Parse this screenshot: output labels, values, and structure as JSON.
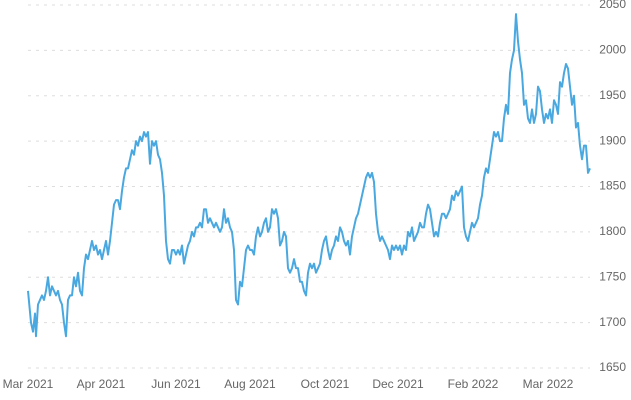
{
  "chart_data": {
    "type": "line",
    "x": [
      0,
      3,
      5,
      7,
      8,
      10,
      12,
      14,
      16,
      18,
      20,
      22,
      24,
      26,
      28,
      30,
      32,
      34,
      36,
      38,
      40,
      42,
      44,
      46,
      48,
      50,
      52,
      54,
      56,
      58,
      60,
      62,
      64,
      66,
      68,
      70,
      72,
      74,
      76,
      78,
      80,
      82,
      84,
      86,
      88,
      90,
      92,
      94,
      96,
      98,
      100,
      102,
      104,
      106,
      108,
      110,
      112,
      114,
      116,
      118,
      120,
      122,
      124,
      126,
      128,
      130,
      132,
      134,
      136,
      138,
      140,
      142,
      144,
      146,
      148,
      150,
      152,
      154,
      156,
      158,
      160,
      162,
      164,
      166,
      168,
      170,
      172,
      174,
      176,
      178,
      180,
      182,
      184,
      186,
      188,
      190,
      192,
      194,
      196,
      198,
      200,
      202,
      204,
      206,
      208,
      210,
      212,
      214,
      216,
      218,
      220,
      222,
      224,
      226,
      228,
      230,
      232,
      234,
      236,
      238,
      240,
      242,
      244,
      246,
      248,
      250,
      252,
      254,
      256,
      258,
      260,
      262,
      264,
      266,
      268,
      270,
      272,
      274,
      276,
      278,
      280,
      282,
      284,
      286,
      288,
      290,
      292,
      294,
      296,
      298,
      300,
      302,
      304,
      306,
      308,
      310,
      312,
      314,
      316,
      318,
      320,
      322,
      324,
      326,
      328,
      330,
      332,
      334,
      336,
      338,
      340,
      342,
      344,
      346,
      348,
      350,
      352,
      354,
      356,
      358,
      360,
      362,
      364,
      366,
      368,
      370,
      372,
      374,
      376,
      378,
      380,
      382,
      384,
      386,
      388,
      390,
      392,
      394,
      396,
      398,
      400,
      402,
      404,
      406,
      408,
      410,
      412,
      414,
      416,
      418,
      420,
      422,
      424,
      426,
      428,
      430,
      432,
      434,
      436,
      438,
      440,
      442,
      444,
      446,
      448,
      450,
      452,
      454,
      456,
      458,
      460,
      462,
      464,
      466,
      468,
      470,
      472,
      474,
      476,
      478,
      480,
      482,
      484,
      486,
      488,
      490,
      492,
      494,
      496,
      498,
      500,
      502,
      504,
      506,
      508,
      510,
      512,
      514,
      516,
      518,
      520,
      522,
      524,
      526,
      528,
      530,
      532,
      534,
      536,
      538,
      540,
      542,
      544,
      546,
      548,
      550,
      552,
      554,
      556,
      558,
      560,
      562
    ],
    "values": [
      1735,
      1700,
      1690,
      1710,
      1685,
      1720,
      1725,
      1730,
      1725,
      1735,
      1750,
      1730,
      1740,
      1735,
      1730,
      1735,
      1725,
      1720,
      1700,
      1685,
      1725,
      1730,
      1730,
      1750,
      1740,
      1755,
      1735,
      1730,
      1760,
      1775,
      1770,
      1780,
      1790,
      1780,
      1785,
      1775,
      1780,
      1770,
      1780,
      1790,
      1775,
      1790,
      1810,
      1830,
      1835,
      1835,
      1825,
      1845,
      1860,
      1870,
      1870,
      1880,
      1890,
      1885,
      1900,
      1895,
      1905,
      1900,
      1910,
      1905,
      1910,
      1875,
      1900,
      1895,
      1900,
      1885,
      1880,
      1865,
      1840,
      1790,
      1770,
      1765,
      1780,
      1780,
      1775,
      1780,
      1775,
      1785,
      1765,
      1775,
      1785,
      1790,
      1800,
      1795,
      1805,
      1805,
      1810,
      1805,
      1825,
      1825,
      1810,
      1815,
      1810,
      1805,
      1810,
      1805,
      1800,
      1805,
      1825,
      1810,
      1815,
      1805,
      1800,
      1780,
      1725,
      1720,
      1745,
      1740,
      1760,
      1780,
      1785,
      1780,
      1780,
      1775,
      1795,
      1805,
      1795,
      1800,
      1810,
      1815,
      1800,
      1805,
      1825,
      1820,
      1825,
      1815,
      1785,
      1790,
      1800,
      1795,
      1760,
      1755,
      1760,
      1770,
      1760,
      1760,
      1745,
      1745,
      1735,
      1730,
      1755,
      1765,
      1760,
      1765,
      1755,
      1760,
      1765,
      1780,
      1790,
      1795,
      1780,
      1770,
      1780,
      1785,
      1795,
      1790,
      1805,
      1800,
      1790,
      1785,
      1790,
      1775,
      1795,
      1805,
      1815,
      1820,
      1830,
      1840,
      1850,
      1860,
      1865,
      1860,
      1865,
      1855,
      1820,
      1800,
      1790,
      1795,
      1790,
      1785,
      1780,
      1770,
      1785,
      1780,
      1785,
      1780,
      1785,
      1775,
      1785,
      1780,
      1800,
      1795,
      1805,
      1790,
      1795,
      1800,
      1810,
      1805,
      1805,
      1820,
      1830,
      1825,
      1810,
      1795,
      1800,
      1795,
      1810,
      1820,
      1820,
      1815,
      1820,
      1825,
      1840,
      1835,
      1845,
      1840,
      1845,
      1850,
      1805,
      1795,
      1790,
      1800,
      1810,
      1805,
      1810,
      1815,
      1830,
      1840,
      1860,
      1870,
      1865,
      1880,
      1895,
      1910,
      1905,
      1910,
      1900,
      1900,
      1925,
      1940,
      1930,
      1975,
      1990,
      2000,
      2040,
      2010,
      1990,
      1975,
      1940,
      1945,
      1925,
      1920,
      1935,
      1920,
      1930,
      1960,
      1955,
      1935,
      1920,
      1930,
      1925,
      1935,
      1920,
      1945,
      1940,
      1930,
      1965,
      1960,
      1975,
      1985,
      1980,
      1960,
      1940,
      1950,
      1915,
      1920,
      1895,
      1880,
      1895,
      1895,
      1865,
      1870
    ],
    "color": "#4aa8e0",
    "xlim": [
      0,
      562
    ],
    "xticks": [
      {
        "value": 0,
        "label": "Mar 2021"
      },
      {
        "value": 73,
        "label": "Apr 2021"
      },
      {
        "value": 148,
        "label": "Jun 2021"
      },
      {
        "value": 222,
        "label": "Aug 2021"
      },
      {
        "value": 297,
        "label": "Oct 2021"
      },
      {
        "value": 370,
        "label": "Dec 2021"
      },
      {
        "value": 445,
        "label": "Feb 2022"
      },
      {
        "value": 520,
        "label": "Mar 2022"
      }
    ],
    "ylim": [
      1650,
      2050
    ],
    "yticks": [
      1650,
      1700,
      1750,
      1800,
      1850,
      1900,
      1950,
      2000,
      2050
    ],
    "grid": true
  }
}
